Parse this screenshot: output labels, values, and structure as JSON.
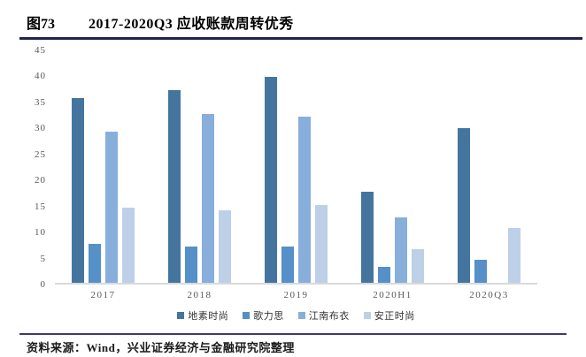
{
  "header": {
    "figure_label": "图73",
    "title": "2017-2020Q3 应收账款周转优秀"
  },
  "footer": {
    "source": "资料来源：Wind，兴业证券经济与金融研究院整理"
  },
  "colors": {
    "title_rule": "#23234f",
    "footer_rule": "#3a3a6e",
    "axis_text": "#595959",
    "baseline": "#d9d9d9"
  },
  "chart_data": {
    "type": "bar",
    "title": "2017-2020Q3 应收账款周转优秀",
    "categories": [
      "2017",
      "2018",
      "2019",
      "2020H1",
      "2020Q3"
    ],
    "series": [
      {
        "name": "地素时尚",
        "color": "#44759f",
        "values": [
          35.5,
          37,
          39.5,
          17.5,
          29.8
        ]
      },
      {
        "name": "歌力思",
        "color": "#5590c8",
        "values": [
          7.5,
          7,
          7,
          3,
          4.5
        ]
      },
      {
        "name": "江南布衣",
        "color": "#88afdb",
        "values": [
          29,
          32.5,
          32,
          12.5,
          null
        ]
      },
      {
        "name": "安正时尚",
        "color": "#bdd0e8",
        "values": [
          14.5,
          14,
          15,
          6.5,
          10.5
        ]
      }
    ],
    "ylim": [
      0,
      45
    ],
    "ytick_step": 5,
    "grid": false,
    "legend_position": "bottom"
  }
}
